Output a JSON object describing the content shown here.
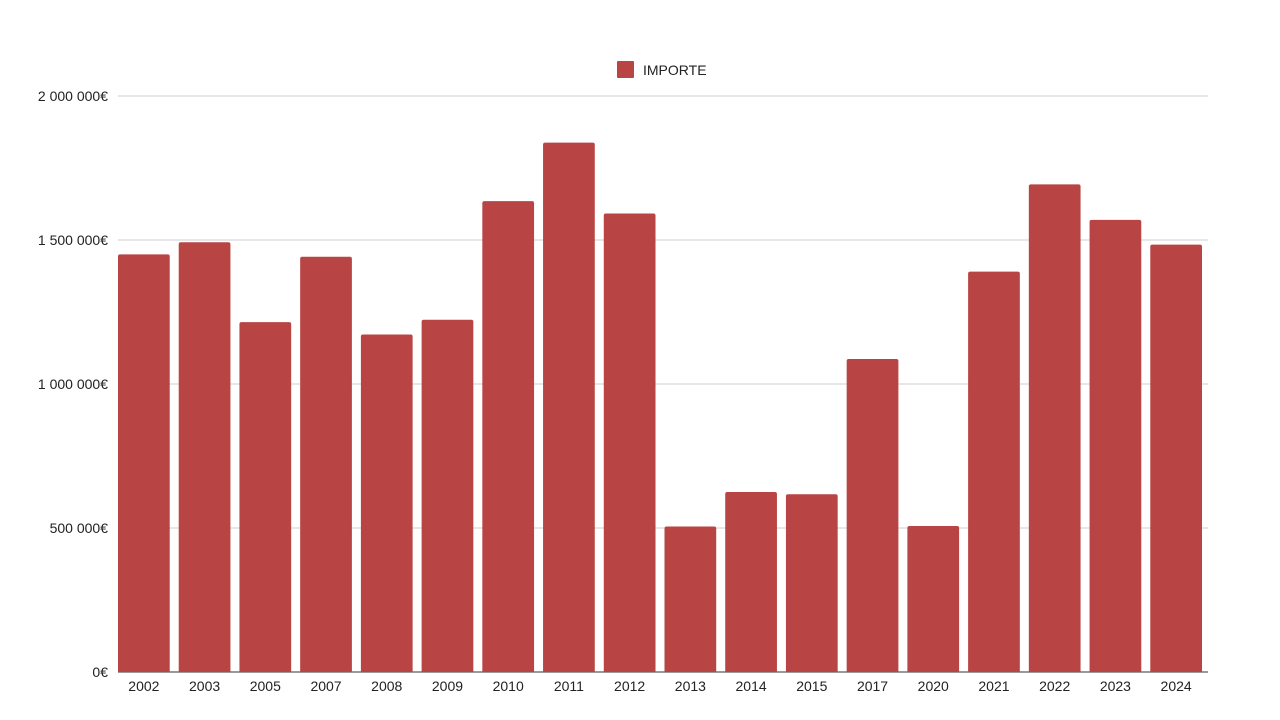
{
  "chart_data": {
    "type": "bar",
    "legend": {
      "label": "IMPORTE",
      "position": "top"
    },
    "series": [
      {
        "name": "IMPORTE",
        "color": "#b94444",
        "values": [
          1450000,
          1492000,
          1215000,
          1442000,
          1172000,
          1223000,
          1635000,
          1838000,
          1592000,
          505000,
          625000,
          617000,
          1087000,
          507000,
          1390000,
          1693000,
          1570000,
          1484000
        ]
      }
    ],
    "categories": [
      "2002",
      "2003",
      "2005",
      "2007",
      "2008",
      "2009",
      "2010",
      "2011",
      "2012",
      "2013",
      "2014",
      "2015",
      "2017",
      "2020",
      "2021",
      "2022",
      "2023",
      "2024"
    ],
    "ylim": [
      0,
      2000000
    ],
    "yticks": [
      0,
      500000,
      1000000,
      1500000,
      2000000
    ],
    "ytick_labels": [
      "0€",
      "500 000€",
      "1 000 000€",
      "1 500 000€",
      "2 000 000€"
    ],
    "grid": true,
    "title": "",
    "xlabel": "",
    "ylabel": ""
  }
}
